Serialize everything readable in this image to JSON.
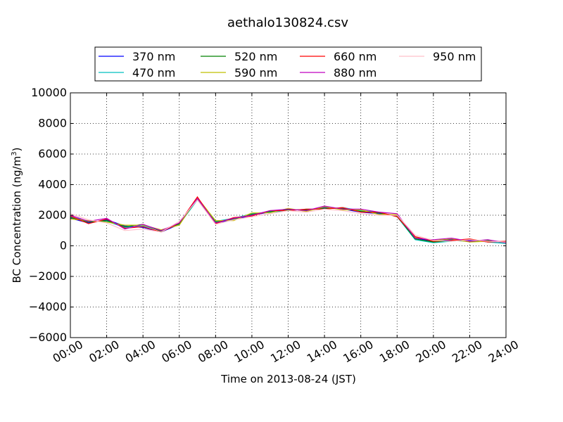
{
  "chart_data": {
    "type": "line",
    "title": "aethalo130824.csv",
    "xlabel": "Time on 2013-08-24 (JST)",
    "ylabel": "BC Concentration (ng/m",
    "ylabel_sup": "3",
    "ylabel_close": ")",
    "xlim": [
      "00:00",
      "24:00"
    ],
    "ylim": [
      -6000,
      10000
    ],
    "xticks": [
      "00:00",
      "02:00",
      "04:00",
      "06:00",
      "08:00",
      "10:00",
      "12:00",
      "14:00",
      "16:00",
      "18:00",
      "20:00",
      "22:00",
      "24:00"
    ],
    "yticks": [
      "-6000",
      "-4000",
      "-2000",
      "0",
      "2000",
      "4000",
      "6000",
      "8000",
      "10000"
    ],
    "grid": true,
    "legend_placement": "top, above plot",
    "series": [
      {
        "name": "370 nm",
        "color": "#0000ff",
        "x": [
          "00:00",
          "01:00",
          "02:00",
          "03:00",
          "04:00",
          "05:00",
          "06:00",
          "07:00",
          "08:00",
          "09:00",
          "10:00",
          "11:00",
          "12:00",
          "13:00",
          "14:00",
          "15:00",
          "16:00",
          "17:00",
          "18:00",
          "19:00",
          "20:00",
          "21:00",
          "22:00",
          "23:00",
          "24:00"
        ],
        "y": [
          1800,
          1500,
          1700,
          1300,
          1200,
          900,
          1400,
          3100,
          1500,
          1700,
          2000,
          2200,
          2400,
          2300,
          2500,
          2400,
          2200,
          2100,
          2000,
          500,
          300,
          400,
          350,
          300,
          200
        ]
      },
      {
        "name": "470 nm",
        "color": "#00bfbf",
        "x": [
          "00:00",
          "01:00",
          "02:00",
          "03:00",
          "04:00",
          "05:00",
          "06:00",
          "07:00",
          "08:00",
          "09:00",
          "10:00",
          "11:00",
          "12:00",
          "13:00",
          "14:00",
          "15:00",
          "16:00",
          "17:00",
          "18:00",
          "19:00",
          "20:00",
          "21:00",
          "22:00",
          "23:00",
          "24:00"
        ],
        "y": [
          1900,
          1600,
          1600,
          1200,
          1300,
          1000,
          1400,
          3000,
          1600,
          1800,
          2100,
          2200,
          2300,
          2400,
          2400,
          2500,
          2300,
          2200,
          1900,
          400,
          200,
          300,
          400,
          250,
          150
        ]
      },
      {
        "name": "520 nm",
        "color": "#008000",
        "x": [
          "00:00",
          "01:00",
          "02:00",
          "03:00",
          "04:00",
          "05:00",
          "06:00",
          "07:00",
          "08:00",
          "09:00",
          "10:00",
          "11:00",
          "12:00",
          "13:00",
          "14:00",
          "15:00",
          "16:00",
          "17:00",
          "18:00",
          "19:00",
          "20:00",
          "21:00",
          "22:00",
          "23:00",
          "24:00"
        ],
        "y": [
          1850,
          1550,
          1650,
          1250,
          1400,
          950,
          1450,
          3050,
          1550,
          1750,
          2050,
          2250,
          2350,
          2350,
          2450,
          2450,
          2250,
          2150,
          1950,
          450,
          250,
          350,
          300,
          350,
          200
        ]
      },
      {
        "name": "590 nm",
        "color": "#bfbf00",
        "x": [
          "00:00",
          "01:00",
          "02:00",
          "03:00",
          "04:00",
          "05:00",
          "06:00",
          "07:00",
          "08:00",
          "09:00",
          "10:00",
          "11:00",
          "12:00",
          "13:00",
          "14:00",
          "15:00",
          "16:00",
          "17:00",
          "18:00",
          "19:00",
          "20:00",
          "21:00",
          "22:00",
          "23:00",
          "24:00"
        ],
        "y": [
          1750,
          1650,
          1550,
          1350,
          1350,
          1050,
          1350,
          3150,
          1650,
          1650,
          2150,
          2150,
          2450,
          2250,
          2550,
          2350,
          2350,
          2050,
          2050,
          550,
          350,
          450,
          250,
          300,
          250
        ]
      },
      {
        "name": "660 nm",
        "color": "#ff0000",
        "x": [
          "00:00",
          "01:00",
          "02:00",
          "03:00",
          "04:00",
          "05:00",
          "06:00",
          "07:00",
          "08:00",
          "09:00",
          "10:00",
          "11:00",
          "12:00",
          "13:00",
          "14:00",
          "15:00",
          "16:00",
          "17:00",
          "18:00",
          "19:00",
          "20:00",
          "21:00",
          "22:00",
          "23:00",
          "24:00"
        ],
        "y": [
          1950,
          1450,
          1750,
          1150,
          1250,
          900,
          1500,
          3200,
          1450,
          1850,
          1950,
          2300,
          2300,
          2400,
          2400,
          2500,
          2200,
          2200,
          1900,
          600,
          300,
          350,
          450,
          250,
          300
        ]
      },
      {
        "name": "880 nm",
        "color": "#bf00bf",
        "x": [
          "00:00",
          "01:00",
          "02:00",
          "03:00",
          "04:00",
          "05:00",
          "06:00",
          "07:00",
          "08:00",
          "09:00",
          "10:00",
          "11:00",
          "12:00",
          "13:00",
          "14:00",
          "15:00",
          "16:00",
          "17:00",
          "18:00",
          "19:00",
          "20:00",
          "21:00",
          "22:00",
          "23:00",
          "24:00"
        ],
        "y": [
          2000,
          1600,
          1800,
          1100,
          1400,
          1000,
          1500,
          3100,
          1500,
          1800,
          2000,
          2300,
          2400,
          2300,
          2600,
          2400,
          2400,
          2200,
          2100,
          500,
          400,
          500,
          300,
          400,
          200
        ]
      },
      {
        "name": "950 nm",
        "color": "#ffc0cb",
        "x": [
          "00:00",
          "01:00",
          "02:00",
          "03:00",
          "04:00",
          "05:00",
          "06:00",
          "07:00",
          "08:00",
          "09:00",
          "10:00",
          "11:00",
          "12:00",
          "13:00",
          "14:00",
          "15:00",
          "16:00",
          "17:00",
          "18:00",
          "19:00",
          "20:00",
          "21:00",
          "22:00",
          "23:00",
          "24:00"
        ],
        "y": [
          2100,
          1700,
          1500,
          1000,
          1100,
          900,
          1600,
          3000,
          1400,
          1700,
          1900,
          2100,
          2300,
          2200,
          2400,
          2300,
          2100,
          2000,
          2000,
          700,
          350,
          300,
          400,
          300,
          250
        ]
      }
    ]
  }
}
